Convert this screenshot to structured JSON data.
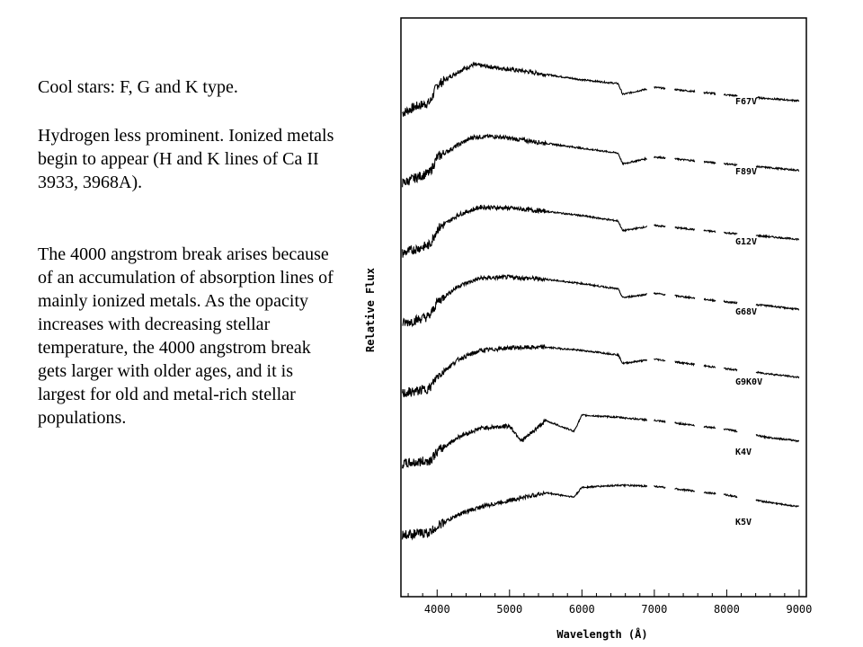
{
  "slide_text": {
    "heading": "Cool stars: F, G and K type.",
    "paragraph1": "Hydrogen less prominent. Ionized metals begin to appear (H and K lines of Ca II 3933, 3968A).",
    "paragraph2": "The 4000 angstrom break arises because of an accumulation of absorption lines of mainly ionized metals. As the opacity increases with decreasing stellar temperature, the 4000 angstrom break gets larger with older ages, and it is largest for old and metal-rich stellar populations."
  },
  "chart_data": {
    "type": "line",
    "xlabel": "Wavelength (Å)",
    "ylabel": "Relative Flux",
    "xlim": [
      3500,
      9100
    ],
    "xticks": [
      4000,
      5000,
      6000,
      7000,
      8000,
      9000
    ],
    "y_tick_labels": false,
    "grid": false,
    "series": [
      {
        "name": "F67V",
        "values": [
          [
            3520,
            0.1
          ],
          [
            3700,
            0.22
          ],
          [
            3900,
            0.3
          ],
          [
            4000,
            0.62
          ],
          [
            4300,
            0.88
          ],
          [
            4500,
            1.0
          ],
          [
            4800,
            0.95
          ],
          [
            5200,
            0.88
          ],
          [
            6000,
            0.72
          ],
          [
            6500,
            0.65
          ],
          [
            6563,
            0.45
          ],
          [
            7000,
            0.58
          ],
          [
            8000,
            0.44
          ],
          [
            8500,
            0.38
          ],
          [
            9000,
            0.33
          ]
        ]
      },
      {
        "name": "F89V",
        "values": [
          [
            3520,
            0.1
          ],
          [
            3700,
            0.2
          ],
          [
            3900,
            0.3
          ],
          [
            4000,
            0.58
          ],
          [
            4300,
            0.82
          ],
          [
            4500,
            0.96
          ],
          [
            4800,
            0.97
          ],
          [
            5200,
            0.9
          ],
          [
            6000,
            0.75
          ],
          [
            6500,
            0.66
          ],
          [
            6563,
            0.46
          ],
          [
            7000,
            0.59
          ],
          [
            8000,
            0.46
          ],
          [
            8500,
            0.4
          ],
          [
            9000,
            0.34
          ]
        ]
      },
      {
        "name": "G12V",
        "values": [
          [
            3520,
            0.1
          ],
          [
            3700,
            0.18
          ],
          [
            3900,
            0.26
          ],
          [
            4000,
            0.55
          ],
          [
            4300,
            0.82
          ],
          [
            4600,
            0.96
          ],
          [
            5000,
            0.94
          ],
          [
            5500,
            0.88
          ],
          [
            6000,
            0.8
          ],
          [
            6500,
            0.7
          ],
          [
            6563,
            0.52
          ],
          [
            7000,
            0.62
          ],
          [
            8000,
            0.48
          ],
          [
            8500,
            0.42
          ],
          [
            9000,
            0.36
          ]
        ]
      },
      {
        "name": "G68V",
        "values": [
          [
            3520,
            0.1
          ],
          [
            3700,
            0.16
          ],
          [
            3900,
            0.24
          ],
          [
            4000,
            0.5
          ],
          [
            4300,
            0.8
          ],
          [
            4600,
            0.94
          ],
          [
            5000,
            0.96
          ],
          [
            5500,
            0.92
          ],
          [
            6000,
            0.84
          ],
          [
            6500,
            0.74
          ],
          [
            6563,
            0.58
          ],
          [
            7000,
            0.66
          ],
          [
            8000,
            0.5
          ],
          [
            8500,
            0.44
          ],
          [
            9000,
            0.36
          ]
        ]
      },
      {
        "name": "G9K0V",
        "values": [
          [
            3520,
            0.1
          ],
          [
            3700,
            0.14
          ],
          [
            3900,
            0.2
          ],
          [
            4000,
            0.42
          ],
          [
            4300,
            0.74
          ],
          [
            4600,
            0.9
          ],
          [
            5000,
            0.95
          ],
          [
            5500,
            0.96
          ],
          [
            6000,
            0.9
          ],
          [
            6500,
            0.82
          ],
          [
            6563,
            0.66
          ],
          [
            7000,
            0.74
          ],
          [
            8000,
            0.56
          ],
          [
            8500,
            0.48
          ],
          [
            9000,
            0.4
          ]
        ]
      },
      {
        "name": "K4V",
        "values": [
          [
            3520,
            0.1
          ],
          [
            3700,
            0.12
          ],
          [
            3900,
            0.16
          ],
          [
            4000,
            0.32
          ],
          [
            4300,
            0.6
          ],
          [
            4600,
            0.76
          ],
          [
            5000,
            0.8
          ],
          [
            5170,
            0.52
          ],
          [
            5500,
            0.9
          ],
          [
            5890,
            0.7
          ],
          [
            6000,
            1.0
          ],
          [
            6500,
            0.96
          ],
          [
            7000,
            0.9
          ],
          [
            8000,
            0.74
          ],
          [
            8500,
            0.6
          ],
          [
            9000,
            0.52
          ]
        ]
      },
      {
        "name": "K5V",
        "values": [
          [
            3520,
            0.08
          ],
          [
            3700,
            0.1
          ],
          [
            3900,
            0.12
          ],
          [
            4000,
            0.24
          ],
          [
            4300,
            0.46
          ],
          [
            4600,
            0.6
          ],
          [
            5000,
            0.72
          ],
          [
            5500,
            0.86
          ],
          [
            5890,
            0.78
          ],
          [
            6000,
            0.96
          ],
          [
            6500,
            1.0
          ],
          [
            7000,
            0.98
          ],
          [
            8000,
            0.82
          ],
          [
            8500,
            0.7
          ],
          [
            9000,
            0.6
          ]
        ]
      }
    ]
  }
}
